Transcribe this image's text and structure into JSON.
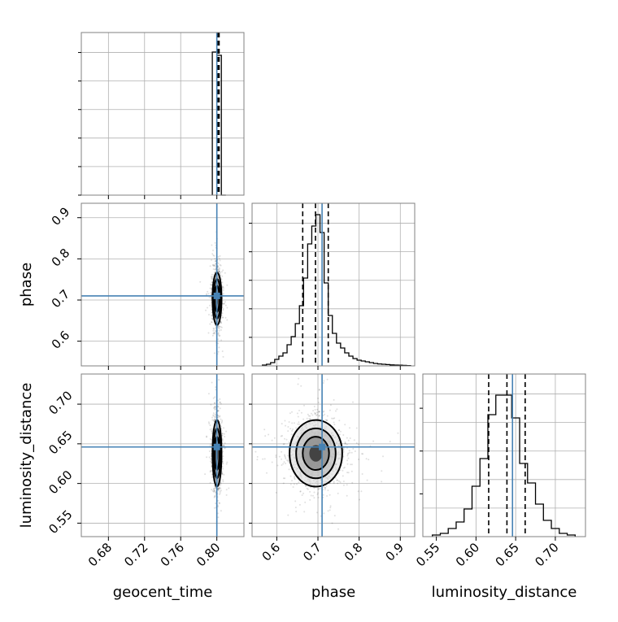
{
  "chart_data": {
    "type": "corner",
    "parameters": [
      "geocent_time",
      "phase",
      "luminosity_distance"
    ],
    "truths": {
      "geocent_time": 0.8,
      "phase": 0.71,
      "luminosity_distance": 0.646
    },
    "colors": {
      "truth": "#4682b4",
      "hist": "#000000",
      "grid": "#b0b0b0",
      "frame": "#808080",
      "samples": "#000000"
    },
    "grid": true,
    "ranges": {
      "geocent_time": [
        0.65,
        0.83
      ],
      "phase": [
        0.54,
        0.935
      ],
      "luminosity_distance": [
        0.533,
        0.738
      ]
    },
    "ticks": {
      "geocent_time": [
        0.68,
        0.72,
        0.76,
        0.8
      ],
      "phase": [
        0.6,
        0.7,
        0.8,
        0.9
      ],
      "luminosity_distance": [
        0.55,
        0.6,
        0.65,
        0.7
      ]
    },
    "tick_labels": {
      "geocent_time": [
        "0.68",
        "0.72",
        "0.76",
        "0.80"
      ],
      "phase_x": [
        "0.6",
        "0.7",
        "0.8",
        "0.9"
      ],
      "phase_y": [
        "0.6",
        "0.7",
        "0.8",
        "0.9"
      ],
      "luminosity_distance_x": [
        "0.55",
        "0.60",
        "0.65",
        "0.70"
      ],
      "luminosity_distance_y": [
        "0.55",
        "0.60",
        "0.65",
        "0.70"
      ]
    },
    "axis_labels": {
      "x_bottom_left": "geocent_time",
      "x_bottom_mid": "phase",
      "x_bottom_right": "luminosity_distance",
      "y_mid": "phase",
      "y_bottom": "luminosity_distance"
    },
    "quantiles_dashed": {
      "geocent_time": [
        0.8005,
        0.8015,
        0.8025
      ],
      "phase": [
        0.663,
        0.694,
        0.725
      ],
      "luminosity_distance": [
        0.616,
        0.639,
        0.662
      ]
    },
    "histograms": {
      "geocent_time": {
        "bin_edges": [
          0.795,
          0.8,
          0.805,
          0.81
        ],
        "values": [
          0.88,
          0.86,
          0.0
        ]
      },
      "phase": {
        "bin_edges": [
          0.565,
          0.575,
          0.585,
          0.595,
          0.605,
          0.615,
          0.625,
          0.635,
          0.645,
          0.655,
          0.665,
          0.675,
          0.685,
          0.695,
          0.705,
          0.715,
          0.725,
          0.735,
          0.745,
          0.755,
          0.765,
          0.775,
          0.785,
          0.795,
          0.805,
          0.815,
          0.825,
          0.835,
          0.845,
          0.855,
          0.865,
          0.875,
          0.885,
          0.895,
          0.905,
          0.915,
          0.925
        ],
        "values": [
          0.005,
          0.01,
          0.02,
          0.04,
          0.06,
          0.08,
          0.13,
          0.18,
          0.26,
          0.37,
          0.54,
          0.75,
          0.86,
          0.93,
          0.82,
          0.51,
          0.31,
          0.2,
          0.14,
          0.11,
          0.08,
          0.06,
          0.045,
          0.035,
          0.03,
          0.025,
          0.02,
          0.015,
          0.012,
          0.01,
          0.008,
          0.006,
          0.005,
          0.004,
          0.003,
          0.002
        ]
      },
      "luminosity_distance": {
        "bin_edges": [
          0.545,
          0.555,
          0.565,
          0.575,
          0.585,
          0.595,
          0.605,
          0.615,
          0.625,
          0.635,
          0.645,
          0.655,
          0.665,
          0.675,
          0.685,
          0.695,
          0.705,
          0.715,
          0.725
        ],
        "values": [
          0.01,
          0.02,
          0.05,
          0.09,
          0.17,
          0.31,
          0.48,
          0.75,
          0.87,
          0.87,
          0.73,
          0.45,
          0.33,
          0.2,
          0.1,
          0.05,
          0.02,
          0.01
        ]
      }
    },
    "scatter_centers": {
      "geocent_time_phase": {
        "x": 0.8002,
        "y": 0.703
      },
      "geocent_time_luminosity_distance": {
        "x": 0.8002,
        "y": 0.638
      },
      "phase_luminosity_distance": {
        "x": 0.695,
        "y": 0.638
      }
    },
    "scatter_spread": {
      "geocent_time": 0.0025,
      "phase": 0.032,
      "luminosity_distance": 0.021
    }
  }
}
